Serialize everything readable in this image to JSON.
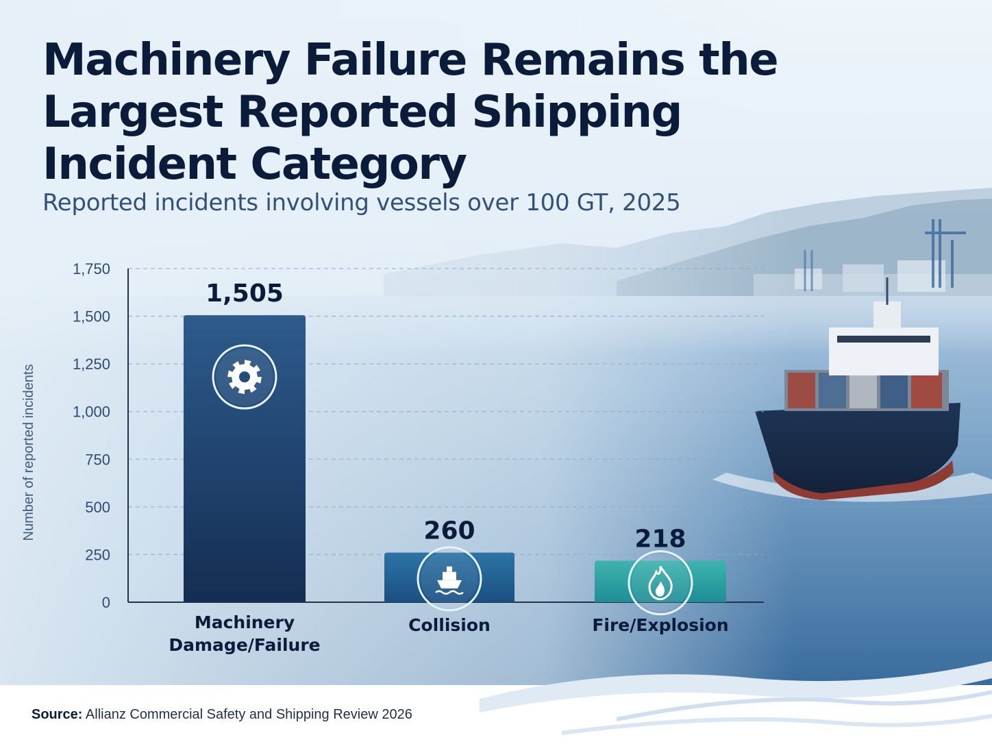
{
  "header": {
    "title": "Machinery Failure Remains the Largest Reported Shipping Incident Category",
    "subtitle": "Reported incidents involving vessels over 100 GT, 2025"
  },
  "chart_data": {
    "type": "bar",
    "categories": [
      [
        "Machinery",
        "Damage/Failure"
      ],
      [
        "Collision"
      ],
      [
        "Fire/Explosion"
      ]
    ],
    "values": [
      1505,
      260,
      218
    ],
    "value_labels": [
      "1,505",
      "260",
      "218"
    ],
    "icons": [
      "gear-icon",
      "ship-icon",
      "flame-icon"
    ],
    "bar_colors": [
      [
        "#2d5b8c",
        "#142d52"
      ],
      [
        "#2d74a6",
        "#1a4f82"
      ],
      [
        "#3fb3b0",
        "#1e8e95"
      ]
    ],
    "ylabel": "Number of reported incidents",
    "ylim": [
      0,
      1750
    ],
    "yticks": [
      0,
      250,
      500,
      750,
      1000,
      1250,
      1500,
      1750
    ],
    "ytick_labels": [
      "0",
      "250",
      "500",
      "750",
      "1,000",
      "1,250",
      "1,500",
      "1,750"
    ],
    "grid": true,
    "legend": "none"
  },
  "footer": {
    "source_label": "Source:",
    "source_text": "Allianz Commercial Safety and Shipping Review 2026"
  }
}
